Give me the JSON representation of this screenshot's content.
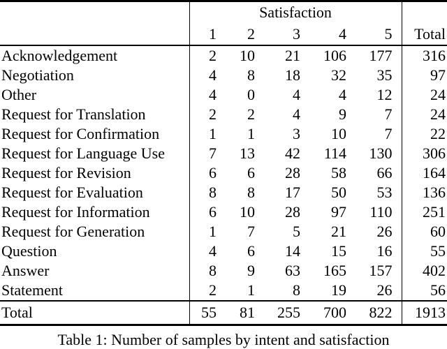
{
  "table": {
    "group_header": "Satisfaction",
    "satisfaction_levels": [
      "1",
      "2",
      "3",
      "4",
      "5"
    ],
    "total_header": "Total",
    "rows": [
      {
        "intent": "Acknowledgement",
        "counts": [
          2,
          10,
          21,
          106,
          177
        ],
        "total": 316
      },
      {
        "intent": "Negotiation",
        "counts": [
          4,
          8,
          18,
          32,
          35
        ],
        "total": 97
      },
      {
        "intent": "Other",
        "counts": [
          4,
          0,
          4,
          4,
          12
        ],
        "total": 24
      },
      {
        "intent": "Request for Translation",
        "counts": [
          2,
          2,
          4,
          9,
          7
        ],
        "total": 24
      },
      {
        "intent": "Request for Confirmation",
        "counts": [
          1,
          1,
          3,
          10,
          7
        ],
        "total": 22
      },
      {
        "intent": "Request for Language Use",
        "counts": [
          7,
          13,
          42,
          114,
          130
        ],
        "total": 306
      },
      {
        "intent": "Request for Revision",
        "counts": [
          6,
          6,
          28,
          58,
          66
        ],
        "total": 164
      },
      {
        "intent": "Request for Evaluation",
        "counts": [
          8,
          8,
          17,
          50,
          53
        ],
        "total": 136
      },
      {
        "intent": "Request for Information",
        "counts": [
          6,
          10,
          28,
          97,
          110
        ],
        "total": 251
      },
      {
        "intent": "Request for Generation",
        "counts": [
          1,
          7,
          5,
          21,
          26
        ],
        "total": 60
      },
      {
        "intent": "Question",
        "counts": [
          4,
          6,
          14,
          15,
          16
        ],
        "total": 55
      },
      {
        "intent": "Answer",
        "counts": [
          8,
          9,
          63,
          165,
          157
        ],
        "total": 402
      },
      {
        "intent": "Statement",
        "counts": [
          2,
          1,
          8,
          19,
          26
        ],
        "total": 56
      }
    ],
    "totals_row": {
      "label": "Total",
      "counts": [
        55,
        81,
        255,
        700,
        822
      ],
      "total": 1913
    }
  },
  "caption": "Table 1: Number of samples by intent and satisfaction",
  "colors": {
    "text": "#000000",
    "background": "#ffffff",
    "rule": "#000000"
  }
}
